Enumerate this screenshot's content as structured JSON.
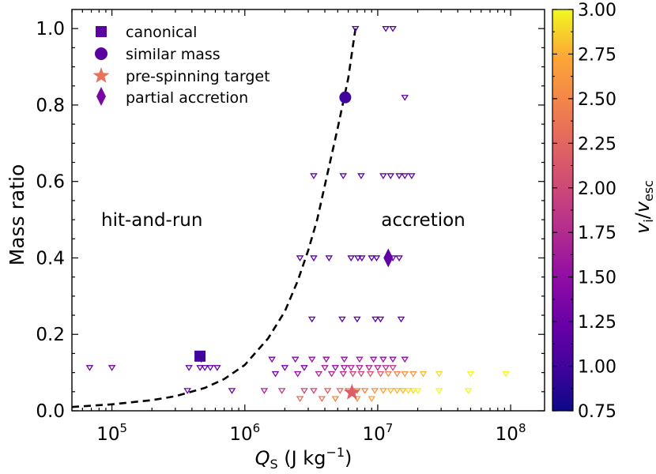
{
  "chart_data": {
    "type": "scatter",
    "xlabel_main": "Q",
    "xlabel_sub": "S",
    "xlabel_rest": " (J kg",
    "xlabel_exp": "−1",
    "xlabel_close": ")",
    "ylabel": "Mass ratio",
    "xscale": "log",
    "xlim": [
      50000,
      180000000
    ],
    "ylim": [
      0.0,
      1.05
    ],
    "x_ticks": [
      {
        "value": 100000,
        "base": "10",
        "exp": "5"
      },
      {
        "value": 1000000,
        "base": "10",
        "exp": "6"
      },
      {
        "value": 10000000,
        "base": "10",
        "exp": "7"
      },
      {
        "value": 100000000,
        "base": "10",
        "exp": "8"
      }
    ],
    "y_ticks": [
      {
        "value": 0.0,
        "label": "0.0"
      },
      {
        "value": 0.2,
        "label": "0.2"
      },
      {
        "value": 0.4,
        "label": "0.4"
      },
      {
        "value": 0.6,
        "label": "0.6"
      },
      {
        "value": 0.8,
        "label": "0.8"
      },
      {
        "value": 1.0,
        "label": "1.0"
      }
    ],
    "regions": [
      {
        "label": "hit-and-run",
        "x": 200000,
        "y": 0.5
      },
      {
        "label": "accretion",
        "x": 22000000,
        "y": 0.5
      }
    ],
    "boundary_curve": {
      "style": "dashed",
      "points": [
        [
          50000,
          0.01
        ],
        [
          100000,
          0.017
        ],
        [
          200000,
          0.028
        ],
        [
          300000,
          0.038
        ],
        [
          500000,
          0.06
        ],
        [
          700000,
          0.083
        ],
        [
          1000000,
          0.12
        ],
        [
          1500000,
          0.19
        ],
        [
          2000000,
          0.26
        ],
        [
          2500000,
          0.34
        ],
        [
          3000000,
          0.42
        ],
        [
          3500000,
          0.5
        ],
        [
          4000000,
          0.59
        ],
        [
          5000000,
          0.74
        ],
        [
          6000000,
          0.87
        ],
        [
          6600000,
          0.97
        ],
        [
          6800000,
          1.0
        ]
      ]
    },
    "colorbar": {
      "label_v": "v",
      "label_i": "i",
      "label_sep": "/",
      "label_esc": "esc",
      "min": 0.75,
      "max": 3.0,
      "ticks": [
        "0.75",
        "1.00",
        "1.25",
        "1.50",
        "1.75",
        "2.00",
        "2.25",
        "2.50",
        "2.75",
        "3.00"
      ],
      "colormap": "plasma"
    },
    "legend": {
      "position": "top-left",
      "entries": [
        {
          "marker": "square",
          "label": "canonical",
          "color": "#5a04a0"
        },
        {
          "marker": "circle",
          "label": "similar mass",
          "color": "#5a04a0"
        },
        {
          "marker": "star",
          "label": "pre-spinning target",
          "color": "#e8735a"
        },
        {
          "marker": "diamond",
          "label": "partial accretion",
          "color": "#7a06a4"
        }
      ]
    },
    "highlighted": [
      {
        "name": "canonical",
        "marker": "square",
        "x": 460000,
        "y": 0.143,
        "c": 1.0
      },
      {
        "name": "similar mass",
        "marker": "circle",
        "x": 5700000,
        "y": 0.82,
        "c": 1.0
      },
      {
        "name": "pre-spinning target",
        "marker": "star",
        "x": 6400000,
        "y": 0.048,
        "c": 2.2
      },
      {
        "name": "partial accretion",
        "marker": "diamond",
        "x": 12000000,
        "y": 0.4,
        "c": 1.2
      }
    ],
    "series": [
      {
        "name": "simulations",
        "marker": "triangle-down-open",
        "points": [
          [
            6800000,
            1.0,
            1.1
          ],
          [
            11500000,
            1.0,
            1.1
          ],
          [
            13000000,
            1.0,
            1.1
          ],
          [
            16000000,
            0.82,
            1.15
          ],
          [
            3300000,
            0.615,
            1.15
          ],
          [
            5500000,
            0.615,
            1.15
          ],
          [
            7500000,
            0.615,
            1.1
          ],
          [
            11000000,
            0.615,
            1.15
          ],
          [
            12500000,
            0.615,
            1.1
          ],
          [
            14500000,
            0.615,
            1.1
          ],
          [
            16000000,
            0.615,
            1.15
          ],
          [
            18000000,
            0.615,
            1.15
          ],
          [
            2600000,
            0.4,
            1.1
          ],
          [
            3300000,
            0.4,
            1.15
          ],
          [
            4300000,
            0.4,
            1.1
          ],
          [
            6300000,
            0.4,
            1.1
          ],
          [
            7100000,
            0.4,
            1.1
          ],
          [
            7600000,
            0.4,
            1.1
          ],
          [
            9000000,
            0.4,
            1.1
          ],
          [
            9800000,
            0.4,
            1.1
          ],
          [
            13000000,
            0.4,
            1.15
          ],
          [
            14500000,
            0.4,
            1.15
          ],
          [
            3200000,
            0.24,
            1.15
          ],
          [
            5400000,
            0.24,
            1.15
          ],
          [
            7000000,
            0.24,
            1.15
          ],
          [
            9600000,
            0.24,
            1.2
          ],
          [
            10500000,
            0.24,
            1.15
          ],
          [
            15000000,
            0.24,
            1.2
          ],
          [
            68000,
            0.113,
            1.2
          ],
          [
            100000,
            0.113,
            1.25
          ],
          [
            380000,
            0.113,
            1.2
          ],
          [
            460000,
            0.113,
            1.15
          ],
          [
            500000,
            0.113,
            1.2
          ],
          [
            550000,
            0.113,
            1.2
          ],
          [
            620000,
            0.113,
            1.2
          ],
          [
            470000,
            0.135,
            1.2
          ],
          [
            1600000,
            0.135,
            1.3
          ],
          [
            2400000,
            0.135,
            1.4
          ],
          [
            3200000,
            0.135,
            1.5
          ],
          [
            4100000,
            0.135,
            1.5
          ],
          [
            5600000,
            0.135,
            1.5
          ],
          [
            7300000,
            0.135,
            1.6
          ],
          [
            9300000,
            0.135,
            1.5
          ],
          [
            11000000,
            0.135,
            1.5
          ],
          [
            13000000,
            0.135,
            1.5
          ],
          [
            16000000,
            0.135,
            1.5
          ],
          [
            2000000,
            0.113,
            1.3
          ],
          [
            2800000,
            0.113,
            1.3
          ],
          [
            4000000,
            0.113,
            1.6
          ],
          [
            4800000,
            0.113,
            1.5
          ],
          [
            5600000,
            0.113,
            1.6
          ],
          [
            6300000,
            0.113,
            1.7
          ],
          [
            7300000,
            0.113,
            1.7
          ],
          [
            8600000,
            0.113,
            1.7
          ],
          [
            10000000,
            0.113,
            1.7
          ],
          [
            11500000,
            0.113,
            1.8
          ],
          [
            13000000,
            0.113,
            1.9
          ],
          [
            1700000,
            0.097,
            1.3
          ],
          [
            2500000,
            0.097,
            1.5
          ],
          [
            3600000,
            0.097,
            1.7
          ],
          [
            4500000,
            0.097,
            1.7
          ],
          [
            5500000,
            0.097,
            1.8
          ],
          [
            6500000,
            0.097,
            2.0
          ],
          [
            7500000,
            0.097,
            2.0
          ],
          [
            8800000,
            0.097,
            2.1
          ],
          [
            10500000,
            0.097,
            2.2
          ],
          [
            12000000,
            0.097,
            2.5
          ],
          [
            14000000,
            0.097,
            2.5
          ],
          [
            16000000,
            0.097,
            2.6
          ],
          [
            18500000,
            0.097,
            2.6
          ],
          [
            22000000,
            0.097,
            2.8
          ],
          [
            29000000,
            0.097,
            2.9
          ],
          [
            50000000,
            0.097,
            3.0
          ],
          [
            92000000,
            0.097,
            3.0
          ],
          [
            370000,
            0.053,
            1.3
          ],
          [
            800000,
            0.053,
            1.3
          ],
          [
            1400000,
            0.053,
            1.7
          ],
          [
            1900000,
            0.053,
            1.9
          ],
          [
            2800000,
            0.053,
            2.0
          ],
          [
            3300000,
            0.053,
            2.0
          ],
          [
            4200000,
            0.053,
            2.2
          ],
          [
            5200000,
            0.053,
            2.3
          ],
          [
            6000000,
            0.053,
            2.4
          ],
          [
            7000000,
            0.053,
            2.5
          ],
          [
            8000000,
            0.053,
            2.5
          ],
          [
            9500000,
            0.053,
            2.6
          ],
          [
            11000000,
            0.053,
            2.7
          ],
          [
            12500000,
            0.053,
            2.8
          ],
          [
            14000000,
            0.053,
            2.8
          ],
          [
            15500000,
            0.053,
            2.8
          ],
          [
            17000000,
            0.053,
            2.9
          ],
          [
            18500000,
            0.053,
            2.9
          ],
          [
            20000000,
            0.053,
            3.0
          ],
          [
            29000000,
            0.053,
            3.0
          ],
          [
            48000000,
            0.053,
            3.0
          ],
          [
            2600000,
            0.032,
            2.3
          ],
          [
            3800000,
            0.032,
            2.4
          ],
          [
            4800000,
            0.032,
            2.5
          ],
          [
            7000000,
            0.032,
            2.6
          ],
          [
            9000000,
            0.032,
            2.7
          ]
        ]
      }
    ]
  }
}
